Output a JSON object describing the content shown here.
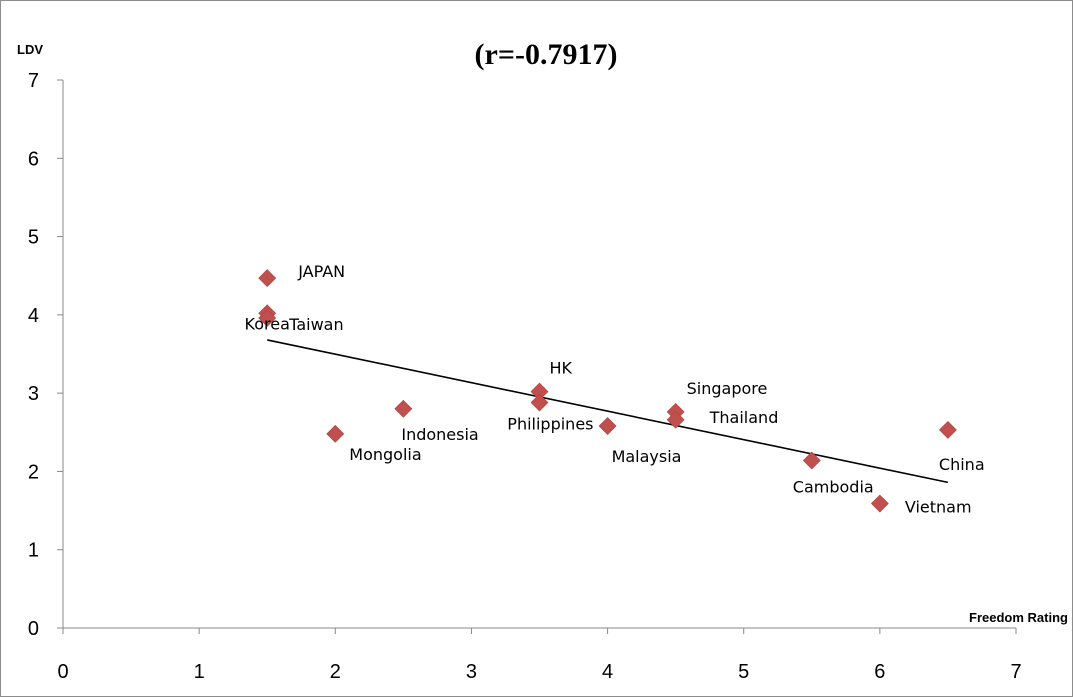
{
  "chart_data": {
    "type": "scatter",
    "title": "(r=-0.7917)",
    "xlabel": "Freedom Rating",
    "ylabel": "LDV",
    "xlim": [
      0,
      7
    ],
    "ylim": [
      0,
      7
    ],
    "x_ticks": [
      "0",
      "1",
      "2",
      "3",
      "4",
      "5",
      "6",
      "7"
    ],
    "y_ticks": [
      "0",
      "1",
      "2",
      "3",
      "4",
      "5",
      "6",
      "7"
    ],
    "grid": false,
    "legend": "none",
    "marker": "diamond",
    "marker_color": "#c0504d",
    "trendline_color": "#000000",
    "trendline": {
      "x": [
        1.5,
        6.5
      ],
      "y": [
        3.68,
        1.86
      ]
    },
    "points": [
      {
        "label": "JAPAN",
        "x": 1.5,
        "y": 4.47
      },
      {
        "label": "Korea",
        "x": 1.5,
        "y": 4.02
      },
      {
        "label": "Taiwan",
        "x": 1.5,
        "y": 3.96
      },
      {
        "label": "Mongolia",
        "x": 2.0,
        "y": 2.48
      },
      {
        "label": "Indonesia",
        "x": 2.5,
        "y": 2.8
      },
      {
        "label": "HK",
        "x": 3.5,
        "y": 3.02
      },
      {
        "label": "Philippines",
        "x": 3.5,
        "y": 2.88
      },
      {
        "label": "Malaysia",
        "x": 4.0,
        "y": 2.58
      },
      {
        "label": "Singapore",
        "x": 4.5,
        "y": 2.76
      },
      {
        "label": "Thailand",
        "x": 4.5,
        "y": 2.66
      },
      {
        "label": "Cambodia",
        "x": 5.5,
        "y": 2.14
      },
      {
        "label": "Vietnam",
        "x": 6.0,
        "y": 1.59
      },
      {
        "label": "China",
        "x": 6.5,
        "y": 2.53
      }
    ]
  }
}
